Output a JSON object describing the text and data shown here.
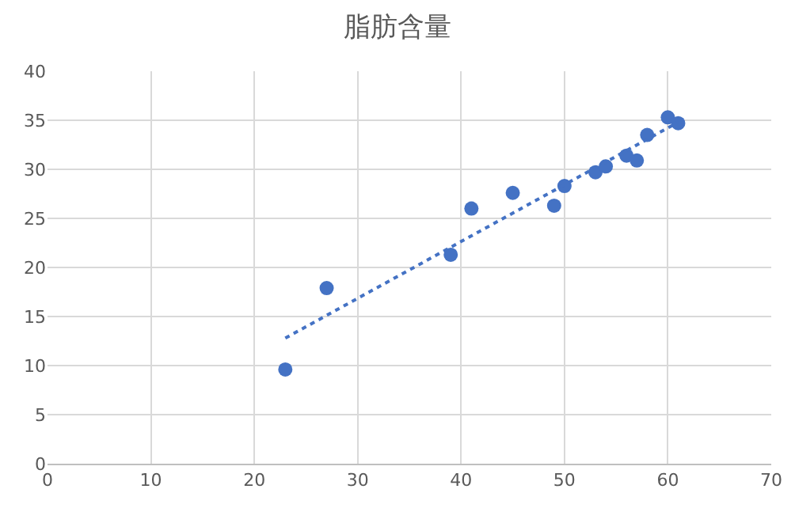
{
  "chart_data": {
    "type": "scatter",
    "title": "脂肪含量",
    "series": [
      {
        "color": "#4472c4",
        "x": [
          23,
          27,
          39,
          41,
          45,
          49,
          50,
          53,
          54,
          56,
          57,
          58,
          60,
          61
        ],
        "values": [
          9.6,
          17.9,
          21.3,
          26,
          27.6,
          26.3,
          28.3,
          29.7,
          30.3,
          31.4,
          30.9,
          33.5,
          35.3,
          34.7
        ],
        "marker": "circle"
      },
      {
        "type": "line",
        "color": "#4472c4",
        "x": [
          23,
          61
        ],
        "values": [
          12.8,
          34.8
        ],
        "line_style": "dotted",
        "marker": "none"
      }
    ],
    "xlim": [
      0,
      70
    ],
    "xticks": [
      0,
      10,
      20,
      30,
      40,
      50,
      60,
      70
    ],
    "ylim": [
      0,
      40
    ],
    "yticks": [
      0,
      5,
      10,
      15,
      20,
      25,
      30,
      35,
      40
    ],
    "grid": true
  }
}
